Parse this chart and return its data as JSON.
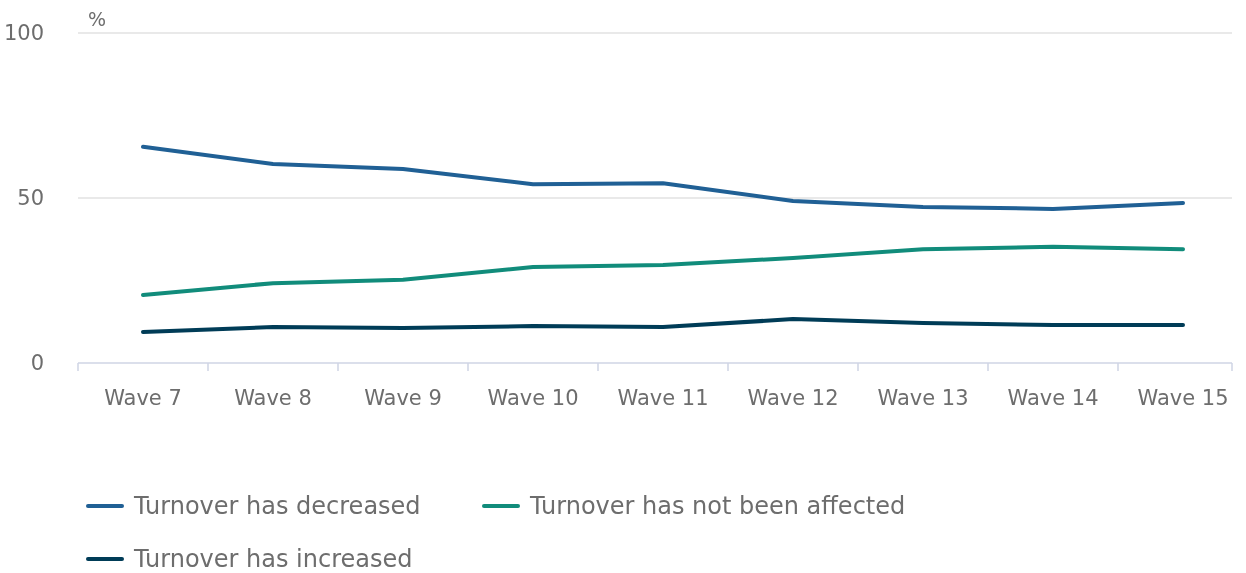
{
  "chart_data": {
    "type": "line",
    "ylabel": "%",
    "categories": [
      "Wave 7",
      "Wave 8",
      "Wave 9",
      "Wave 10",
      "Wave 11",
      "Wave 12",
      "Wave 13",
      "Wave 14",
      "Wave 15"
    ],
    "series": [
      {
        "name": "Turnover has decreased",
        "color": "#206095",
        "values": [
          65.5,
          60.3,
          58.8,
          54.2,
          54.5,
          49.1,
          47.3,
          46.7,
          48.5
        ]
      },
      {
        "name": "Turnover has not been affected",
        "color": "#118c7b",
        "values": [
          20.6,
          24.2,
          25.2,
          29.1,
          29.7,
          31.8,
          34.5,
          35.2,
          34.5
        ]
      },
      {
        "name": "Turnover has increased",
        "color": "#003c57",
        "values": [
          9.4,
          10.9,
          10.6,
          11.2,
          10.9,
          13.3,
          12.1,
          11.5,
          11.5
        ]
      }
    ],
    "ylim": [
      0,
      100
    ],
    "yticks": [
      0,
      50,
      100
    ],
    "grid": "y",
    "legend": "bottom",
    "line_style": "solid",
    "marker": "none"
  }
}
